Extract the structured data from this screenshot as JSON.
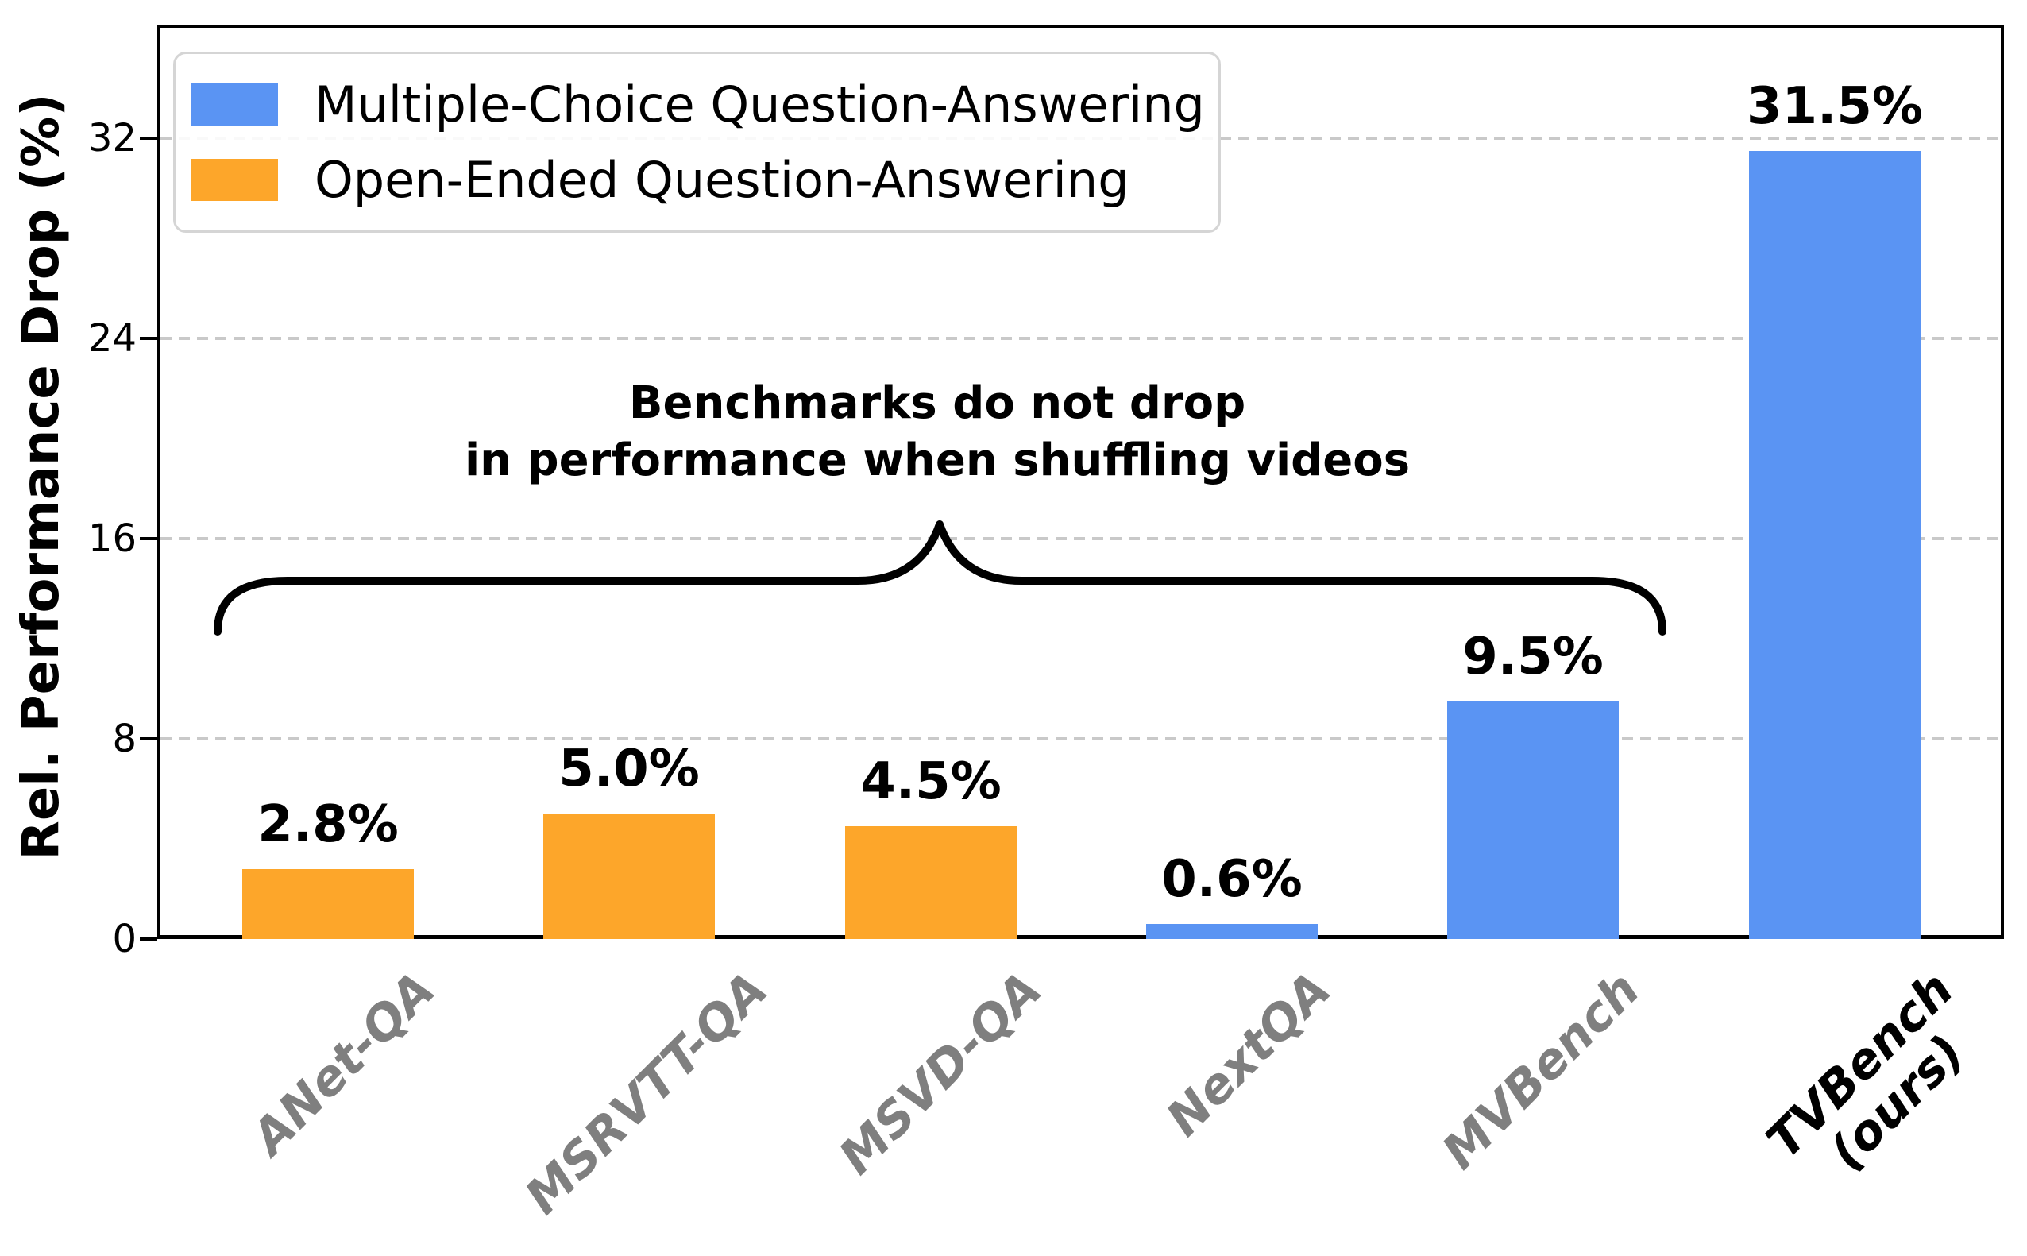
{
  "axis": {
    "ylabel": "Rel. Performance Drop (%)",
    "yticks": [
      "0",
      "8",
      "16",
      "24",
      "32"
    ],
    "ytick_values": [
      0,
      8,
      16,
      24,
      32
    ]
  },
  "legend": {
    "items": [
      {
        "label": "Multiple-Choice Question-Answering",
        "color": "#5A94F3",
        "icon": "blue-swatch"
      },
      {
        "label": "Open-Ended Question-Answering",
        "color": "#FDA62A",
        "icon": "orange-swatch"
      }
    ]
  },
  "annotation": {
    "line1": "Benchmarks do not drop",
    "line2": "in performance when shuffling videos"
  },
  "chart_data": {
    "type": "bar",
    "title": "",
    "xlabel": "",
    "ylabel": "Rel. Performance Drop (%)",
    "categories": [
      "ANet-QA",
      "MSRVTT-QA",
      "MSVD-QA",
      "NextQA",
      "MVBench",
      "TVBench\n(ours)"
    ],
    "values": [
      2.8,
      5.0,
      4.5,
      0.6,
      9.5,
      31.5
    ],
    "bar_labels": [
      "2.8%",
      "5.0%",
      "4.5%",
      "0.6%",
      "9.5%",
      "31.5%"
    ],
    "series": [
      {
        "name": "Multiple-Choice Question-Answering",
        "color": "#5A94F3",
        "categories": [
          "NextQA",
          "MVBench",
          "TVBench (ours)"
        ],
        "values": [
          0.6,
          9.5,
          31.5
        ]
      },
      {
        "name": "Open-Ended Question-Answering",
        "color": "#FDA62A",
        "categories": [
          "ANet-QA",
          "MSRVTT-QA",
          "MSVD-QA"
        ],
        "values": [
          2.8,
          5.0,
          4.5
        ]
      }
    ],
    "bar_series_index": [
      1,
      1,
      1,
      0,
      0,
      0
    ],
    "xtick_label_colors": [
      "#7f7f7f",
      "#7f7f7f",
      "#7f7f7f",
      "#7f7f7f",
      "#7f7f7f",
      "#000000"
    ],
    "ylim": [
      0,
      36.5
    ],
    "grid": "horizontal-dashed",
    "legend_position": "upper left",
    "annotation_text": "Benchmarks do not drop\nin performance when shuffling videos",
    "annotation_brace": "spans ANet-QA through MVBench"
  }
}
